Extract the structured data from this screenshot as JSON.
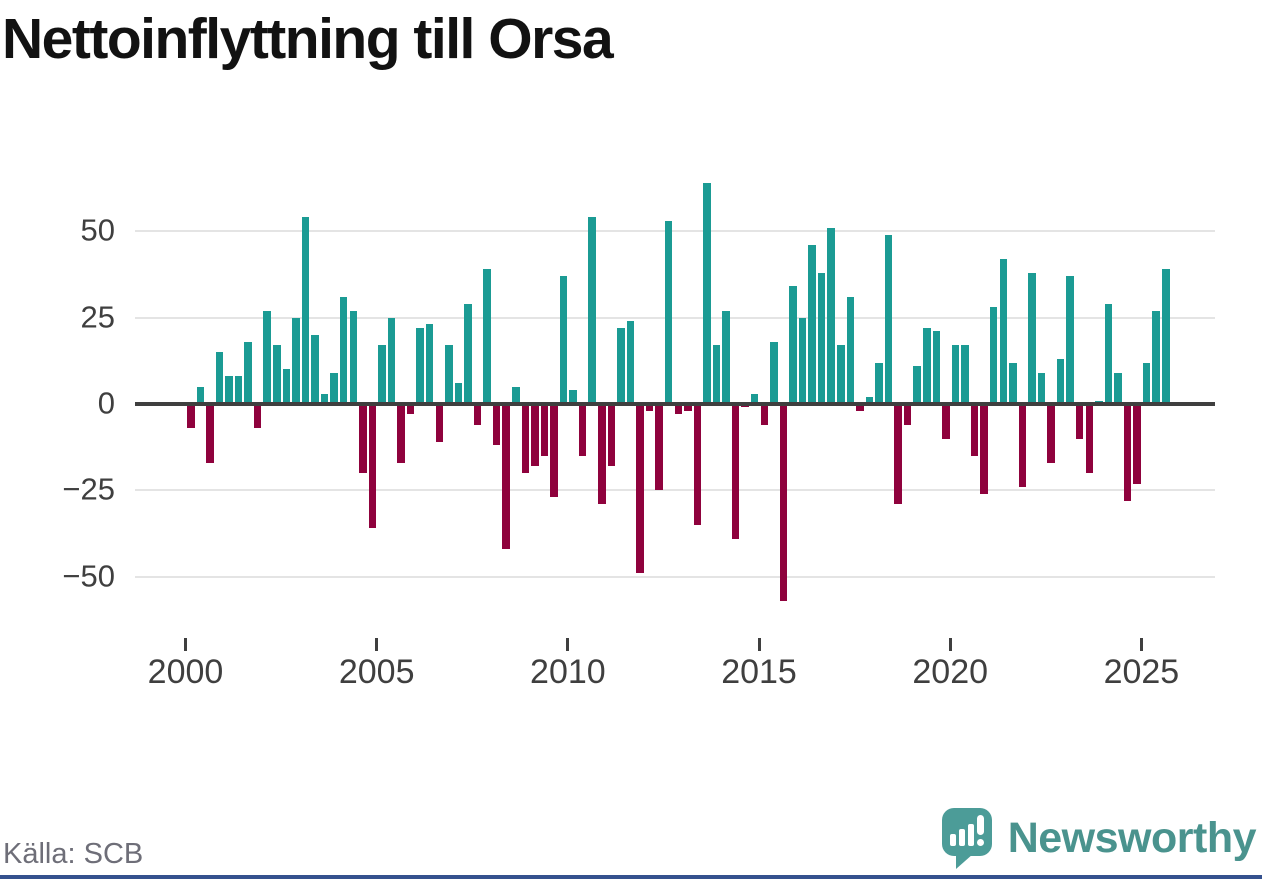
{
  "title": "Nettoinflyttning till Orsa",
  "source": "Källa: SCB",
  "brand": {
    "name": "Newsworthy",
    "logo_icon": "newsworthy-speech-bubble-chart-icon",
    "icon_color": "#4c9c98",
    "text_color": "#4a938e"
  },
  "colors": {
    "positive_bar": "#1b9b94",
    "negative_bar": "#8f023d",
    "zero_axis": "#3f3f3f",
    "gridline": "#e4e4e4",
    "tick_label": "#3f3f3f",
    "source_text": "#6e6e78",
    "footer_strip": "#35518e"
  },
  "chart_data": {
    "type": "bar",
    "title": "Nettoinflyttning till Orsa",
    "xlabel": "",
    "ylabel": "",
    "x_unit": "quarter",
    "start_period": "2000Q1",
    "end_period": "2025Q3",
    "grid": true,
    "ylim": [
      -68,
      75
    ],
    "y_ticks": [
      50,
      25,
      0,
      -25,
      -50
    ],
    "y_tick_labels": [
      "50",
      "25",
      "0",
      "−25",
      "−50"
    ],
    "x_tick_labels": [
      "2000",
      "2005",
      "2010",
      "2015",
      "2020",
      "2025"
    ],
    "x_tick_every_n_bars": 20,
    "values": [
      -7,
      5,
      -17,
      15,
      8,
      8,
      18,
      -7,
      27,
      17,
      10,
      25,
      54,
      20,
      3,
      9,
      31,
      27,
      -20,
      -36,
      17,
      25,
      -17,
      -3,
      22,
      23,
      -11,
      17,
      6,
      29,
      -6,
      39,
      -12,
      -42,
      5,
      -20,
      -18,
      -15,
      -27,
      37,
      4,
      -15,
      54,
      -29,
      -18,
      22,
      24,
      -49,
      -2,
      -25,
      53,
      -3,
      -2,
      -35,
      64,
      17,
      27,
      -39,
      -1,
      3,
      -6,
      18,
      -57,
      34,
      25,
      46,
      38,
      51,
      17,
      31,
      -2,
      2,
      12,
      49,
      -29,
      -6,
      11,
      22,
      21,
      -10,
      17,
      17,
      -15,
      -26,
      28,
      42,
      12,
      -24,
      38,
      9,
      -17,
      13,
      37,
      -10,
      -20,
      1,
      29,
      9,
      -28,
      -23,
      12,
      27,
      39
    ]
  }
}
